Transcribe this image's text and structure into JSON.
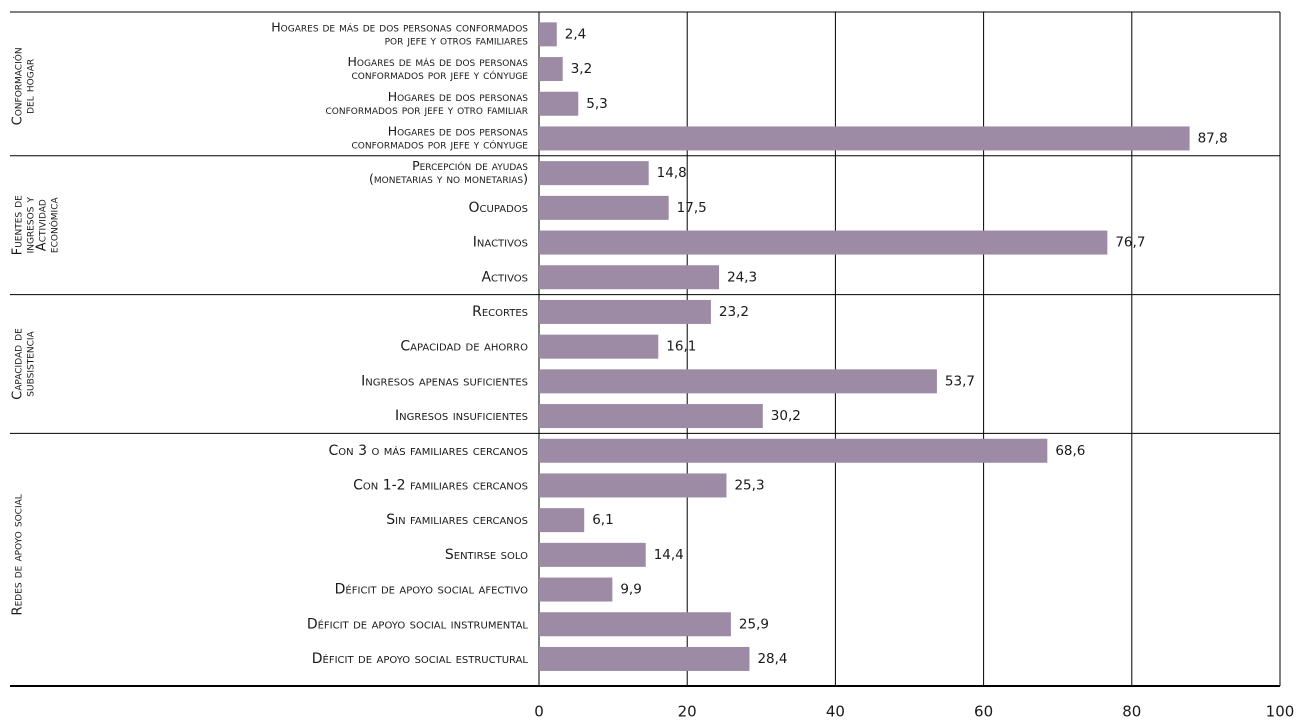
{
  "chart_data": {
    "type": "bar",
    "orientation": "horizontal",
    "color": "#9d8aa5",
    "xlim": [
      0,
      100
    ],
    "xticks": [
      0,
      20,
      40,
      60,
      80,
      100
    ],
    "grid": true,
    "groups": [
      {
        "name": [
          "Conformación",
          "del hogar"
        ],
        "categories": [
          [
            "Hogares de más de dos personas conformados",
            "por jefe y otros familiares"
          ],
          [
            "Hogares de más de dos personas",
            "conformados por jefe y cónyuge"
          ],
          [
            "Hogares de dos personas",
            "conformados por jefe y otro familiar"
          ],
          [
            "Hogares de dos personas",
            "conformados por jefe y cónyuge"
          ]
        ],
        "values": [
          2.4,
          3.2,
          5.3,
          87.8
        ],
        "value_labels": [
          "2,4",
          "3,2",
          "5,3",
          "87,8"
        ]
      },
      {
        "name": [
          "Fuentes de",
          "ingresos y",
          "Actividad",
          "económica"
        ],
        "categories": [
          [
            "Percepción de ayudas",
            "(monetarias y no monetarias)"
          ],
          [
            "Ocupados"
          ],
          [
            "Inactivos"
          ],
          [
            "Activos"
          ]
        ],
        "values": [
          14.8,
          17.5,
          76.7,
          24.3
        ],
        "value_labels": [
          "14,8",
          "17,5",
          "76,7",
          "24,3"
        ]
      },
      {
        "name": [
          "Capacidad de",
          "subsistencia"
        ],
        "categories": [
          [
            "Recortes"
          ],
          [
            "Capacidad de ahorro"
          ],
          [
            "Ingresos apenas suficientes"
          ],
          [
            "Ingresos insuficientes"
          ]
        ],
        "values": [
          23.2,
          16.1,
          53.7,
          30.2
        ],
        "value_labels": [
          "23,2",
          "16,1",
          "53,7",
          "30,2"
        ]
      },
      {
        "name": [
          "Redes de apoyo social"
        ],
        "categories": [
          [
            "Con 3 o más familiares cercanos"
          ],
          [
            "Con 1-2 familiares cercanos"
          ],
          [
            "Sin familiares cercanos"
          ],
          [
            "Sentirse solo"
          ],
          [
            "Déficit de apoyo social afectivo"
          ],
          [
            "Déficit de apoyo social instrumental"
          ],
          [
            "Déficit de apoyo social estructural"
          ]
        ],
        "values": [
          68.6,
          25.3,
          6.1,
          14.4,
          9.9,
          25.9,
          28.4
        ],
        "value_labels": [
          "68,6",
          "25,3",
          "6,1",
          "14,4",
          "9,9",
          "25,9",
          "28,4"
        ]
      }
    ]
  }
}
